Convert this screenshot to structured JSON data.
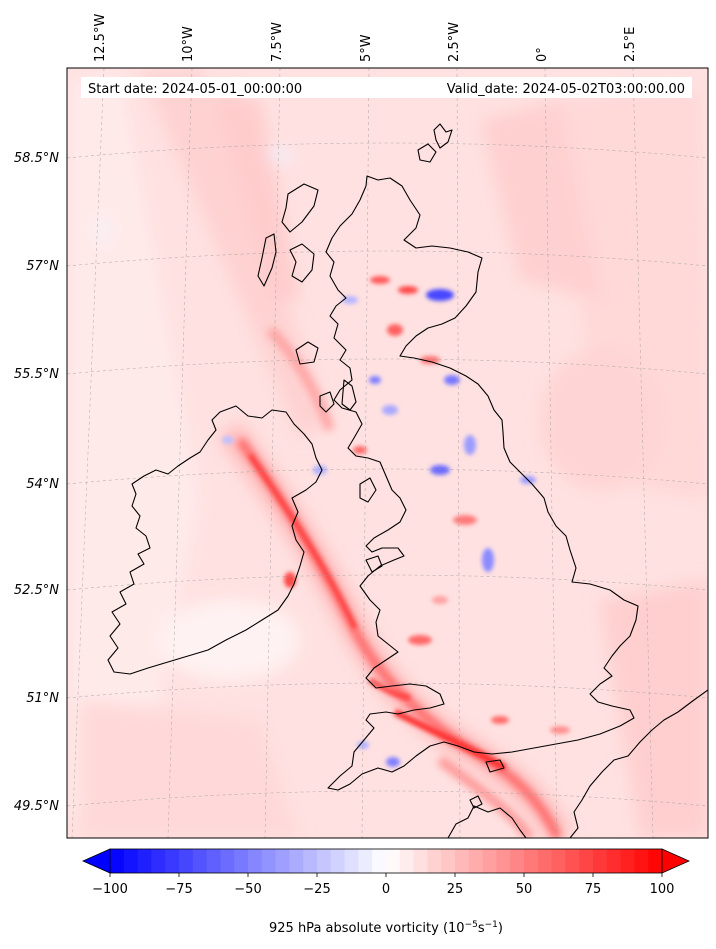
{
  "map": {
    "start_label": "Start date: 2024-05-01_00:00:00",
    "valid_label": "Valid_date: 2024-05-02T03:00:00.00",
    "lon_labels": [
      "12.5°W",
      "10°W",
      "7.5°W",
      "5°W",
      "2.5°W",
      "0°",
      "2.5°E"
    ],
    "lat_labels": [
      "58.5°N",
      "57°N",
      "55.5°N",
      "54°N",
      "52.5°N",
      "51°N",
      "49.5°N"
    ],
    "gridlines": true,
    "coastline_color": "#000000"
  },
  "colorbar": {
    "label_prefix": "925 hPa absolute vorticity (10",
    "label_exp1": "−5",
    "label_mid": "s",
    "label_exp2": "−1",
    "label_suffix": ")",
    "ticks": [
      "−100",
      "−75",
      "−50",
      "−25",
      "0",
      "25",
      "50",
      "75",
      "100"
    ],
    "min": -100,
    "max": 100,
    "extend": "both",
    "colormap": "bwr",
    "low_color": "#0000ff",
    "mid_color": "#ffffff",
    "high_color": "#ff0000"
  }
}
